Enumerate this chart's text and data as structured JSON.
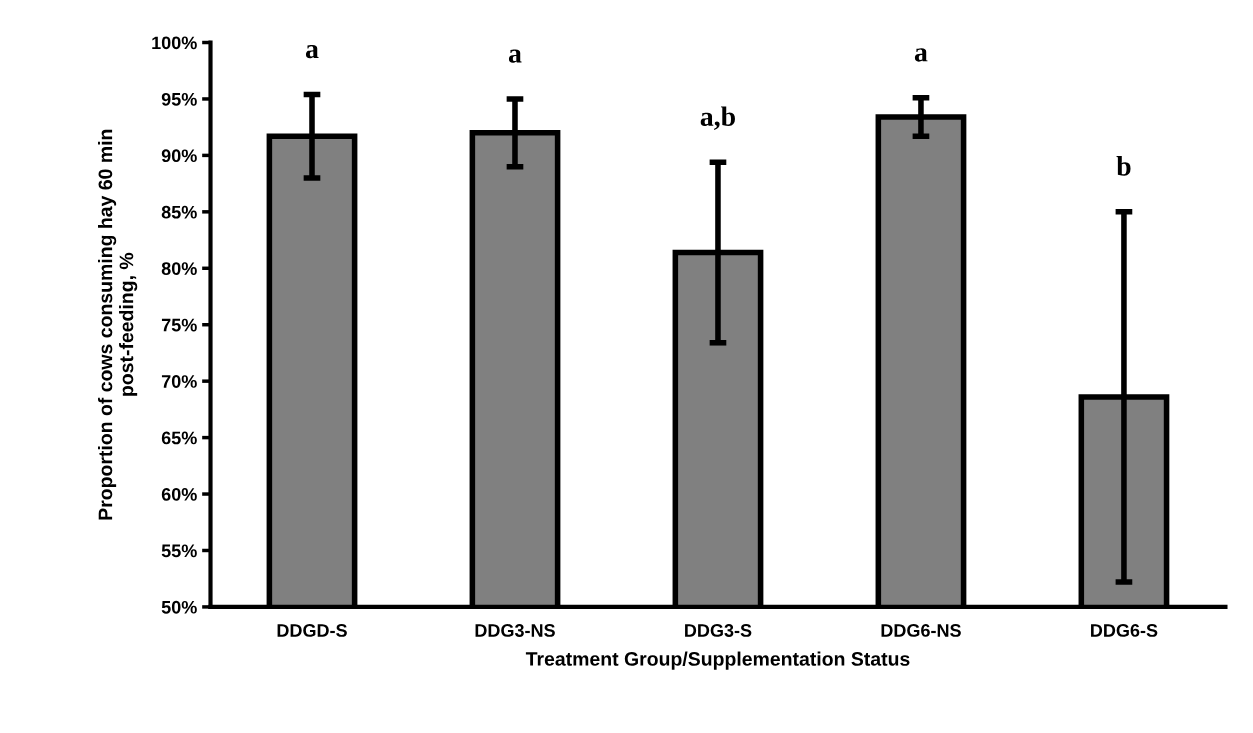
{
  "chart_data": {
    "type": "bar",
    "xlabel": "Treatment Group/Supplementation Status",
    "ylabel": "Proportion of cows consuming hay 60 min\npost-feeding, %",
    "categories": [
      "DDGD-S",
      "DDG3-NS",
      "DDG3-S",
      "DDG6-NS",
      "DDG6-S"
    ],
    "values": [
      91.7,
      92.0,
      81.4,
      93.4,
      68.6
    ],
    "errors": [
      3.7,
      3.0,
      8.0,
      1.7,
      16.4
    ],
    "color": "#808080",
    "ylim": [
      50,
      100
    ],
    "yticks": [
      {
        "value": 50,
        "label": "50%"
      },
      {
        "value": 55,
        "label": "55%"
      },
      {
        "value": 60,
        "label": "60%"
      },
      {
        "value": 65,
        "label": "65%"
      },
      {
        "value": 70,
        "label": "70%"
      },
      {
        "value": 75,
        "label": "75%"
      },
      {
        "value": 80,
        "label": "80%"
      },
      {
        "value": 85,
        "label": "85%"
      },
      {
        "value": 90,
        "label": "90%"
      },
      {
        "value": 95,
        "label": "95%"
      },
      {
        "value": 100,
        "label": "100%"
      }
    ],
    "grid": false,
    "annotations": [
      "a",
      "a",
      "a,b",
      "a",
      "b"
    ]
  }
}
